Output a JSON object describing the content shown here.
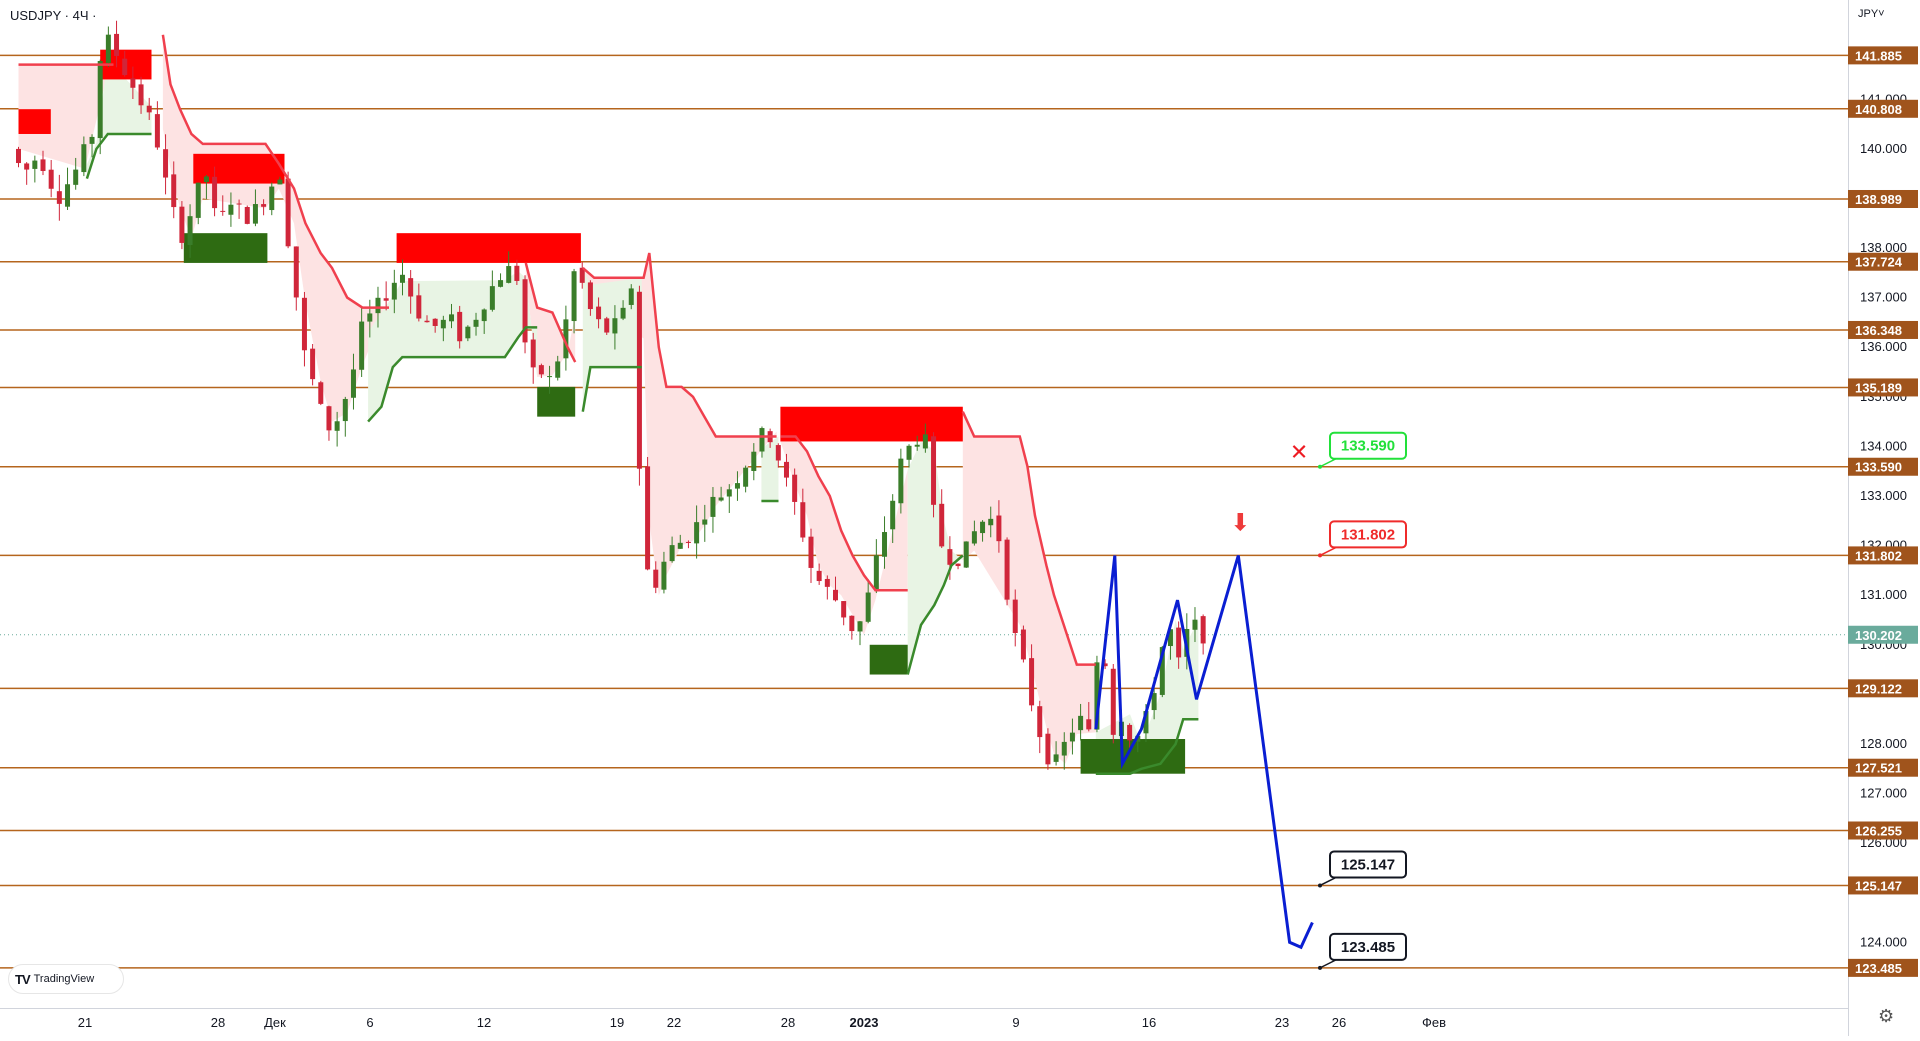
{
  "header": {
    "symbol": "USDJPY · 4Ч ·",
    "currency": "JPY˅"
  },
  "watermark": {
    "logo": "TV",
    "text": "TradingView"
  },
  "colors": {
    "level_line": "#b5651d",
    "level_tag_bg": "#a0541c",
    "level_tag_text": "#ffffff",
    "supply_zone": "#ff0000",
    "demand_zone": "#2e6b12",
    "trail_red": "#f0404e",
    "trail_green": "#3a8a2c",
    "fill_red": "#fde3e3",
    "fill_green": "#e8f4e4",
    "candle_up": "#3a7d2a",
    "candle_down": "#d0263a",
    "projection": "#0a1ed2",
    "current_price": "#6aab9c"
  },
  "chart_data": {
    "type": "candlestick",
    "symbol": "USDJPY",
    "timeframe": "4Ч",
    "y_axis": {
      "range": [
        123.2,
        142.8
      ],
      "ticks": [
        "141.000",
        "140.000",
        "138.000",
        "137.000",
        "136.000",
        "135.000",
        "134.000",
        "133.000",
        "132.000",
        "131.000",
        "130.000",
        "128.000",
        "127.000",
        "126.000",
        "124.000"
      ]
    },
    "x_axis": {
      "labels": [
        {
          "label": "21",
          "t": 0
        },
        {
          "label": "28",
          "t": 7
        },
        {
          "label": "Дек",
          "t": 10
        },
        {
          "label": "6",
          "t": 15
        },
        {
          "label": "12",
          "t": 21
        },
        {
          "label": "19",
          "t": 28
        },
        {
          "label": "22",
          "t": 31
        },
        {
          "label": "28",
          "t": 37
        },
        {
          "label": "2023",
          "t": 41
        },
        {
          "label": "9",
          "t": 49
        },
        {
          "label": "16",
          "t": 56
        },
        {
          "label": "23",
          "t": 63
        },
        {
          "label": "26",
          "t": 66
        },
        {
          "label": "Фев",
          "t": 71
        }
      ]
    },
    "levels": [
      141.885,
      140.808,
      138.989,
      137.724,
      136.348,
      135.189,
      133.59,
      131.802,
      129.122,
      127.521,
      126.255,
      125.147,
      123.485
    ],
    "current_price": 130.202,
    "price_path": [
      [
        -3.5,
        140.0
      ],
      [
        -2.8,
        139.5
      ],
      [
        -2,
        139.9
      ],
      [
        -1,
        139.0
      ],
      [
        0,
        139.6
      ],
      [
        0.8,
        140.3
      ],
      [
        1.2,
        141.8
      ],
      [
        1.7,
        142.2
      ],
      [
        2.5,
        141.6
      ],
      [
        3.3,
        141.0
      ],
      [
        4.1,
        140.4
      ],
      [
        4.5,
        139.6
      ],
      [
        5,
        138.8
      ],
      [
        5.6,
        138.2
      ],
      [
        6.2,
        139.0
      ],
      [
        6.8,
        139.5
      ],
      [
        7.4,
        138.4
      ],
      [
        8.1,
        139.0
      ],
      [
        8.8,
        138.6
      ],
      [
        9.5,
        138.8
      ],
      [
        10.2,
        139.2
      ],
      [
        10.6,
        139.8
      ],
      [
        11,
        138.5
      ],
      [
        11.6,
        136.9
      ],
      [
        12,
        135.8
      ],
      [
        12.5,
        135.2
      ],
      [
        13,
        134.5
      ],
      [
        13.5,
        134.3
      ],
      [
        13.9,
        134.8
      ],
      [
        14.4,
        135.2
      ],
      [
        14.9,
        136.3
      ],
      [
        15.4,
        136.6
      ],
      [
        16,
        136.9
      ],
      [
        16.6,
        137.3
      ],
      [
        17.2,
        137.5
      ],
      [
        17.8,
        136.8
      ],
      [
        18.4,
        136.5
      ],
      [
        19,
        136.4
      ],
      [
        19.6,
        136.6
      ],
      [
        20.2,
        136.2
      ],
      [
        20.8,
        136.5
      ],
      [
        21.4,
        136.9
      ],
      [
        22,
        137.3
      ],
      [
        22.6,
        137.6
      ],
      [
        23.2,
        137.4
      ],
      [
        23.8,
        135.4
      ],
      [
        24.4,
        135.5
      ],
      [
        25,
        135.3
      ],
      [
        25.6,
        136.2
      ],
      [
        26.3,
        137.8
      ],
      [
        26.8,
        136.9
      ],
      [
        27.4,
        136.5
      ],
      [
        28,
        136.3
      ],
      [
        28.7,
        136.6
      ],
      [
        29.3,
        137.4
      ],
      [
        29.7,
        132.5
      ],
      [
        30.2,
        131.0
      ],
      [
        30.8,
        131.6
      ],
      [
        31.4,
        132.0
      ],
      [
        32,
        132.1
      ],
      [
        32.6,
        132.4
      ],
      [
        33.2,
        132.8
      ],
      [
        33.8,
        133.0
      ],
      [
        34.4,
        133.2
      ],
      [
        35,
        133.5
      ],
      [
        35.5,
        133.9
      ],
      [
        36,
        134.2
      ],
      [
        36.4,
        134.3
      ],
      [
        36.9,
        133.8
      ],
      [
        37.4,
        133.2
      ],
      [
        38,
        132.6
      ],
      [
        38.6,
        131.6
      ],
      [
        39.2,
        131.2
      ],
      [
        39.8,
        131.0
      ],
      [
        40.4,
        130.6
      ],
      [
        41,
        130.2
      ],
      [
        41.6,
        130.9
      ],
      [
        42.2,
        131.9
      ],
      [
        42.8,
        132.7
      ],
      [
        43.4,
        133.7
      ],
      [
        44,
        134.1
      ],
      [
        44.6,
        134.3
      ],
      [
        45,
        132.8
      ],
      [
        45.6,
        131.9
      ],
      [
        46.2,
        131.7
      ],
      [
        46.8,
        131.9
      ],
      [
        47.4,
        132.4
      ],
      [
        48,
        132.6
      ],
      [
        48.6,
        132.1
      ],
      [
        49.2,
        130.4
      ],
      [
        49.8,
        129.6
      ],
      [
        50.4,
        128.6
      ],
      [
        51,
        127.8
      ],
      [
        51.6,
        127.6
      ],
      [
        52.2,
        128.2
      ],
      [
        52.8,
        128.5
      ],
      [
        53.4,
        128.1
      ],
      [
        53.9,
        130.8
      ],
      [
        54.4,
        128.2
      ],
      [
        55,
        128.6
      ],
      [
        55.6,
        128.0
      ],
      [
        56.2,
        128.4
      ],
      [
        56.8,
        129.3
      ],
      [
        57.4,
        130.5
      ],
      [
        58,
        129.6
      ],
      [
        58.6,
        130.5
      ],
      [
        59.2,
        130.2
      ]
    ],
    "supply_zones": [
      {
        "t1": -3.5,
        "t2": -1.8,
        "p1": 140.3,
        "p2": 140.8
      },
      {
        "t1": 0.8,
        "t2": 3.5,
        "p1": 141.4,
        "p2": 142.0
      },
      {
        "t1": 5.7,
        "t2": 10.5,
        "p1": 139.3,
        "p2": 139.9
      },
      {
        "t1": 16.4,
        "t2": 26.1,
        "p1": 137.7,
        "p2": 138.3
      },
      {
        "t1": 36.6,
        "t2": 46.2,
        "p1": 134.1,
        "p2": 134.8
      }
    ],
    "demand_zones": [
      {
        "t1": 5.2,
        "t2": 9.6,
        "p1": 137.7,
        "p2": 138.3
      },
      {
        "t1": 23.8,
        "t2": 25.8,
        "p1": 134.6,
        "p2": 135.2
      },
      {
        "t1": 41.3,
        "t2": 43.3,
        "p1": 129.4,
        "p2": 130.0
      },
      {
        "t1": 52.4,
        "t2": 57.9,
        "p1": 127.4,
        "p2": 128.1
      }
    ],
    "trail_red": [
      [
        [
          -3.5,
          141.7
        ],
        [
          0,
          141.7
        ],
        [
          1.5,
          141.7
        ]
      ],
      [
        [
          4.1,
          142.3
        ],
        [
          4.5,
          141.3
        ],
        [
          5,
          140.8
        ],
        [
          5.6,
          140.3
        ],
        [
          6.2,
          140.1
        ],
        [
          9.5,
          140.1
        ],
        [
          10.2,
          139.7
        ],
        [
          11,
          139.2
        ],
        [
          11.6,
          138.5
        ],
        [
          12.4,
          137.9
        ],
        [
          13,
          137.6
        ],
        [
          13.8,
          137.0
        ],
        [
          14.6,
          136.8
        ],
        [
          16,
          136.8
        ]
      ],
      [
        [
          23.2,
          137.7
        ],
        [
          23.8,
          136.8
        ],
        [
          24.6,
          136.7
        ],
        [
          25.4,
          136.0
        ],
        [
          25.8,
          135.7
        ]
      ],
      [
        [
          26.2,
          137.6
        ],
        [
          26.8,
          137.4
        ],
        [
          29.4,
          137.4
        ],
        [
          29.7,
          137.9
        ],
        [
          30.2,
          136.0
        ],
        [
          30.6,
          135.2
        ],
        [
          31.4,
          135.2
        ],
        [
          32,
          135.0
        ],
        [
          32.6,
          134.6
        ],
        [
          33.2,
          134.2
        ],
        [
          36.4,
          134.2
        ]
      ],
      [
        [
          36.6,
          134.2
        ],
        [
          37.4,
          134.2
        ],
        [
          38,
          133.9
        ],
        [
          38.6,
          133.4
        ],
        [
          39.2,
          133.0
        ],
        [
          39.8,
          132.3
        ],
        [
          40.4,
          131.8
        ],
        [
          41,
          131.4
        ],
        [
          41.6,
          131.1
        ],
        [
          43.3,
          131.1
        ]
      ],
      [
        [
          46.2,
          134.7
        ],
        [
          46.8,
          134.2
        ],
        [
          49.2,
          134.2
        ],
        [
          49.6,
          133.6
        ],
        [
          50,
          132.6
        ],
        [
          50.6,
          131.6
        ],
        [
          51,
          131.0
        ],
        [
          51.6,
          130.3
        ],
        [
          52.2,
          129.6
        ],
        [
          53.2,
          129.6
        ]
      ]
    ],
    "trail_green": [
      [
        [
          0.1,
          139.4
        ],
        [
          0.6,
          140.0
        ],
        [
          1.2,
          140.3
        ],
        [
          3.5,
          140.3
        ]
      ],
      [
        [
          14.9,
          134.5
        ],
        [
          15.6,
          134.8
        ],
        [
          16.2,
          135.6
        ],
        [
          16.7,
          135.8
        ],
        [
          22.1,
          135.8
        ],
        [
          22.8,
          136.2
        ],
        [
          23.2,
          136.4
        ],
        [
          23.8,
          136.4
        ]
      ],
      [
        [
          26.2,
          134.7
        ],
        [
          26.6,
          135.6
        ],
        [
          29.3,
          135.6
        ]
      ],
      [
        [
          35.6,
          132.9
        ],
        [
          36.5,
          132.9
        ]
      ],
      [
        [
          43.3,
          129.4
        ],
        [
          44,
          130.4
        ],
        [
          44.7,
          130.8
        ],
        [
          45.2,
          131.2
        ],
        [
          45.6,
          131.6
        ],
        [
          46.2,
          131.8
        ]
      ],
      [
        [
          53.2,
          127.4
        ],
        [
          55,
          127.4
        ],
        [
          55.6,
          127.5
        ],
        [
          56.6,
          127.6
        ],
        [
          57.4,
          128.0
        ],
        [
          57.8,
          128.5
        ],
        [
          58.6,
          128.5
        ]
      ]
    ],
    "projection": [
      [
        53.2,
        128.3
      ],
      [
        54.2,
        131.8
      ],
      [
        54.6,
        127.6
      ],
      [
        55.6,
        128.3
      ],
      [
        57.5,
        130.9
      ],
      [
        58.5,
        128.9
      ],
      [
        60.7,
        131.8
      ],
      [
        63.4,
        124.0
      ],
      [
        64,
        123.9
      ],
      [
        64.6,
        124.4
      ]
    ],
    "annotations": {
      "target_labels": [
        {
          "text": "133.590",
          "price": 133.59,
          "t": 65,
          "style": "green"
        },
        {
          "text": "131.802",
          "price": 131.802,
          "t": 65,
          "style": "red"
        },
        {
          "text": "125.147",
          "price": 125.147,
          "t": 65,
          "style": "dark"
        },
        {
          "text": "123.485",
          "price": 123.485,
          "t": 65,
          "style": "dark"
        }
      ],
      "invalidation_marker": {
        "symbol": "✕",
        "t": 63.9,
        "price": 133.9
      },
      "short_entry_arrow": {
        "symbol": "⬇",
        "t": 60.8,
        "price": 132.3
      }
    }
  }
}
